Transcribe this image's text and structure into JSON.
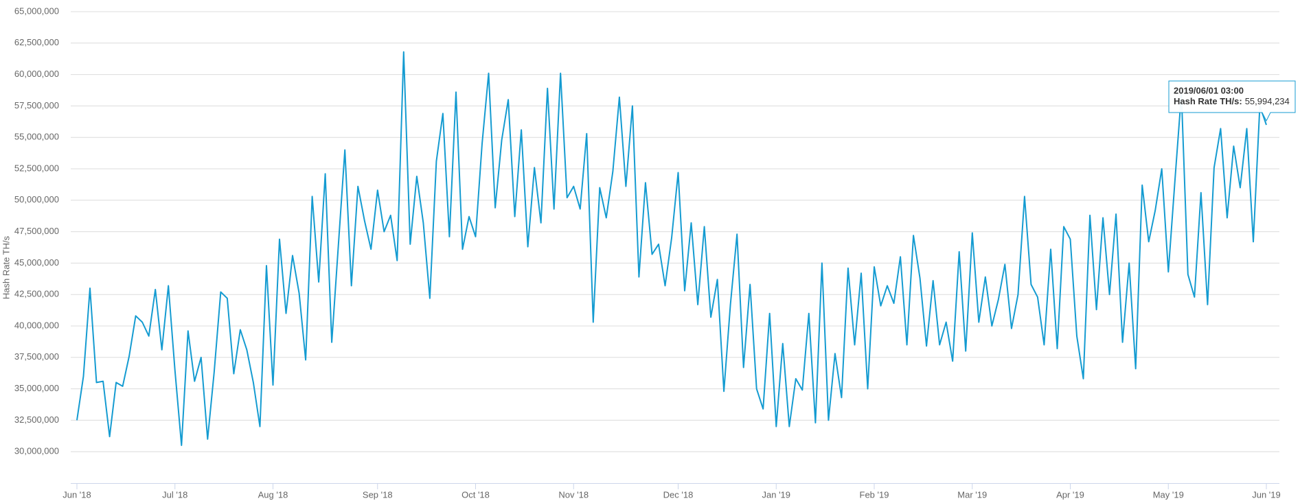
{
  "chart_data": {
    "type": "line",
    "y_label": "Hash Rate TH/s",
    "categories": [
      "Jun '18",
      null,
      null,
      null,
      null,
      null,
      null,
      null,
      null,
      null,
      null,
      null,
      null,
      null,
      null,
      "Jul '18",
      null,
      null,
      null,
      null,
      null,
      null,
      null,
      null,
      null,
      null,
      null,
      null,
      null,
      null,
      "Aug '18",
      null,
      null,
      null,
      null,
      null,
      null,
      null,
      null,
      null,
      null,
      null,
      null,
      null,
      null,
      null,
      "Sep '18",
      null,
      null,
      null,
      null,
      null,
      null,
      null,
      null,
      null,
      null,
      null,
      null,
      null,
      null,
      "Oct '18",
      null,
      null,
      null,
      null,
      null,
      null,
      null,
      null,
      null,
      null,
      null,
      null,
      null,
      null,
      "Nov '18",
      null,
      null,
      null,
      null,
      null,
      null,
      null,
      null,
      null,
      null,
      null,
      null,
      null,
      null,
      null,
      "Dec '18",
      null,
      null,
      null,
      null,
      null,
      null,
      null,
      null,
      null,
      null,
      null,
      null,
      null,
      null,
      "Jan '19",
      null,
      null,
      null,
      null,
      null,
      null,
      null,
      null,
      null,
      null,
      null,
      null,
      null,
      null,
      "Feb '19",
      null,
      null,
      null,
      null,
      null,
      null,
      null,
      null,
      null,
      null,
      null,
      null,
      null,
      null,
      "Mar '19",
      null,
      null,
      null,
      null,
      null,
      null,
      null,
      null,
      null,
      null,
      null,
      null,
      null,
      null,
      "Apr '19",
      null,
      null,
      null,
      null,
      null,
      null,
      null,
      null,
      null,
      null,
      null,
      null,
      null,
      null,
      "May '19",
      null,
      null,
      null,
      null,
      null,
      null,
      null,
      null,
      null,
      null,
      null,
      null,
      null,
      null,
      "Jun '19"
    ],
    "series": [
      {
        "name": "Hash Rate TH/s",
        "color": "#149bd1",
        "values": [
          32500000,
          36000000,
          43000000,
          35500000,
          35600000,
          31200000,
          35500000,
          35200000,
          37600000,
          40800000,
          40300000,
          39200000,
          42900000,
          38100000,
          43200000,
          36500000,
          30500000,
          39600000,
          35600000,
          37500000,
          31000000,
          36300000,
          42700000,
          42200000,
          36200000,
          39700000,
          38100000,
          35500000,
          32000000,
          44800000,
          35300000,
          46900000,
          41000000,
          45600000,
          42600000,
          37300000,
          50300000,
          43500000,
          52100000,
          38700000,
          46400000,
          54000000,
          43200000,
          51100000,
          48400000,
          46100000,
          50800000,
          47500000,
          48800000,
          45200000,
          61800000,
          46500000,
          51900000,
          48200000,
          42200000,
          53100000,
          56900000,
          47100000,
          58600000,
          46100000,
          48700000,
          47100000,
          54500000,
          60100000,
          49400000,
          54800000,
          58000000,
          48700000,
          55600000,
          46300000,
          52600000,
          48200000,
          58900000,
          49300000,
          60100000,
          50200000,
          51100000,
          49300000,
          55300000,
          40300000,
          51000000,
          48600000,
          52300000,
          58200000,
          51100000,
          57500000,
          43900000,
          51400000,
          45700000,
          46500000,
          43200000,
          47000000,
          52200000,
          42800000,
          48200000,
          41700000,
          47900000,
          40700000,
          43700000,
          34800000,
          41700000,
          47300000,
          36700000,
          43300000,
          35000000,
          33400000,
          41000000,
          32000000,
          38600000,
          32000000,
          35800000,
          34900000,
          41000000,
          32300000,
          45000000,
          32500000,
          37800000,
          34300000,
          44600000,
          38500000,
          44200000,
          35000000,
          44700000,
          41600000,
          43200000,
          41800000,
          45500000,
          38500000,
          47200000,
          43800000,
          38400000,
          43600000,
          38500000,
          40300000,
          37200000,
          45900000,
          38000000,
          47400000,
          40300000,
          43900000,
          40000000,
          42100000,
          44900000,
          39800000,
          42500000,
          50300000,
          43300000,
          42300000,
          38500000,
          46100000,
          38200000,
          47900000,
          46900000,
          39200000,
          35800000,
          48800000,
          41300000,
          48600000,
          42500000,
          48900000,
          38700000,
          45000000,
          36600000,
          51200000,
          46700000,
          49200000,
          52500000,
          44300000,
          51500000,
          58500000,
          44100000,
          42300000,
          50600000,
          41700000,
          52600000,
          55700000,
          48600000,
          54300000,
          51000000,
          55700000,
          46700000,
          57500000,
          55994234
        ]
      }
    ],
    "ylim": [
      27500000,
      65000000
    ],
    "yticks": [
      {
        "value": 30000000,
        "label": "30,000,000"
      },
      {
        "value": 32500000,
        "label": "32,500,000"
      },
      {
        "value": 35000000,
        "label": "35,000,000"
      },
      {
        "value": 37500000,
        "label": "37,500,000"
      },
      {
        "value": 40000000,
        "label": "40,000,000"
      },
      {
        "value": 42500000,
        "label": "42,500,000"
      },
      {
        "value": 45000000,
        "label": "45,000,000"
      },
      {
        "value": 47500000,
        "label": "47,500,000"
      },
      {
        "value": 50000000,
        "label": "50,000,000"
      },
      {
        "value": 52500000,
        "label": "52,500,000"
      },
      {
        "value": 55000000,
        "label": "55,000,000"
      },
      {
        "value": 57500000,
        "label": "57,500,000"
      },
      {
        "value": 60000000,
        "label": "60,000,000"
      },
      {
        "value": 62500000,
        "label": "62,500,000"
      },
      {
        "value": 65000000,
        "label": "65,000,000"
      }
    ],
    "grid": true,
    "tooltip": {
      "date": "2019/06/01 03:00",
      "label": "Hash Rate TH/s:",
      "value_label": "55,994,234"
    }
  }
}
